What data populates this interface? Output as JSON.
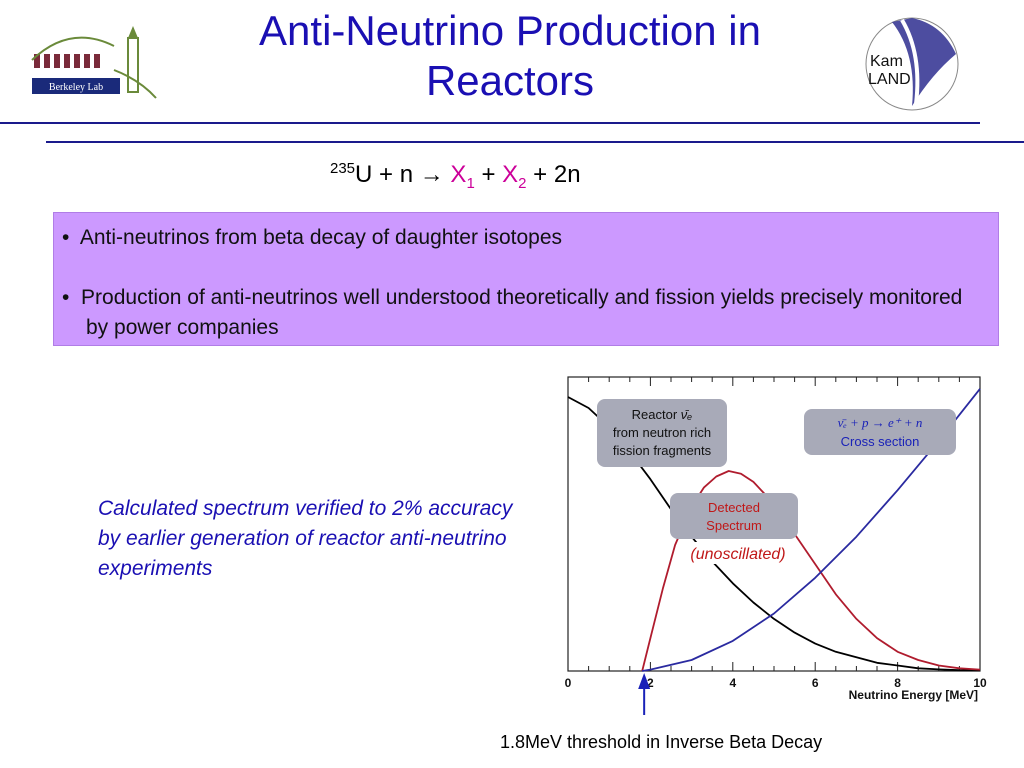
{
  "title": {
    "line1": "Anti-Neutrino Production in",
    "line2": "Reactors"
  },
  "equation": {
    "mass": "235",
    "u": "U",
    "plus_n": " + n ",
    "arrow": "→",
    "x": "X",
    "sub1": "1",
    "plus": " + ",
    "sub2": "2",
    "tail": " + 2n"
  },
  "bullets": [
    "Anti-neutrinos from beta decay of daughter isotopes",
    "Production of anti-neutrinos well understood theoretically and fission yields precisely monitored by power companies"
  ],
  "note": "Calculated spectrum verified to 2% accuracy by earlier generation of reactor anti-neutrino experiments",
  "logos": {
    "left_text": "Berkeley Lab",
    "right_text_1": "Kam",
    "right_text_2": "LAND"
  },
  "colors": {
    "title": "#1a0fb3",
    "box": "#cc99ff",
    "reactor_curve": "#000000",
    "detected_curve": "#b01c2e",
    "cross_section_curve": "#2a2aa0"
  },
  "chart_data": {
    "type": "line",
    "xlabel": "Neutrino Energy [MeV]",
    "xlim": [
      0,
      10
    ],
    "x_ticks": [
      "0",
      "2",
      "4",
      "6",
      "8",
      "10"
    ],
    "series": [
      {
        "name": "reactor",
        "color": "#000000",
        "x": [
          0,
          0.5,
          1,
          1.5,
          2,
          2.5,
          3,
          3.5,
          4,
          4.5,
          5,
          5.5,
          6,
          6.5,
          7,
          7.5,
          8,
          8.5,
          9,
          9.5,
          10
        ],
        "values": [
          1.0,
          0.96,
          0.89,
          0.8,
          0.7,
          0.59,
          0.49,
          0.4,
          0.32,
          0.25,
          0.19,
          0.14,
          0.1,
          0.07,
          0.05,
          0.03,
          0.02,
          0.01,
          0.006,
          0.003,
          0.002
        ]
      },
      {
        "name": "detected",
        "color": "#b01c2e",
        "x": [
          1.8,
          2,
          2.3,
          2.6,
          3,
          3.3,
          3.6,
          3.9,
          4.2,
          4.5,
          5,
          5.5,
          6,
          6.5,
          7,
          7.5,
          8,
          8.5,
          9,
          9.5,
          10
        ],
        "values": [
          0,
          0.12,
          0.3,
          0.46,
          0.6,
          0.67,
          0.71,
          0.73,
          0.72,
          0.69,
          0.61,
          0.5,
          0.39,
          0.28,
          0.19,
          0.12,
          0.07,
          0.04,
          0.02,
          0.01,
          0.005
        ]
      },
      {
        "name": "cross_section",
        "color": "#2a2aa0",
        "x": [
          1.8,
          2,
          3,
          4,
          5,
          6,
          7,
          8,
          9,
          10
        ],
        "values": [
          0,
          0.005,
          0.04,
          0.11,
          0.21,
          0.34,
          0.49,
          0.66,
          0.84,
          1.03
        ]
      }
    ],
    "annotations": [
      {
        "name": "reactor-label",
        "line1": "Reactor ",
        "symbol": "ν̄ₑ",
        "line2": "from neutron rich",
        "line3": "fission fragments",
        "box_color": "#a8aab8",
        "text_color": "#111111"
      },
      {
        "name": "detected-label",
        "line1": "Detected",
        "line2": "Spectrum",
        "sub": "(unoscillated)",
        "box_color": "#a8aab8",
        "text_color": "#c01818"
      },
      {
        "name": "cross-section-label",
        "formula": "ν̄ₑ + p → e⁺ + n",
        "line2": "Cross section",
        "box_color": "#a8aab8",
        "text_color": "#1a22b8"
      }
    ],
    "threshold_label": "1.8MeV threshold in Inverse Beta Decay",
    "threshold_x": 1.8
  }
}
